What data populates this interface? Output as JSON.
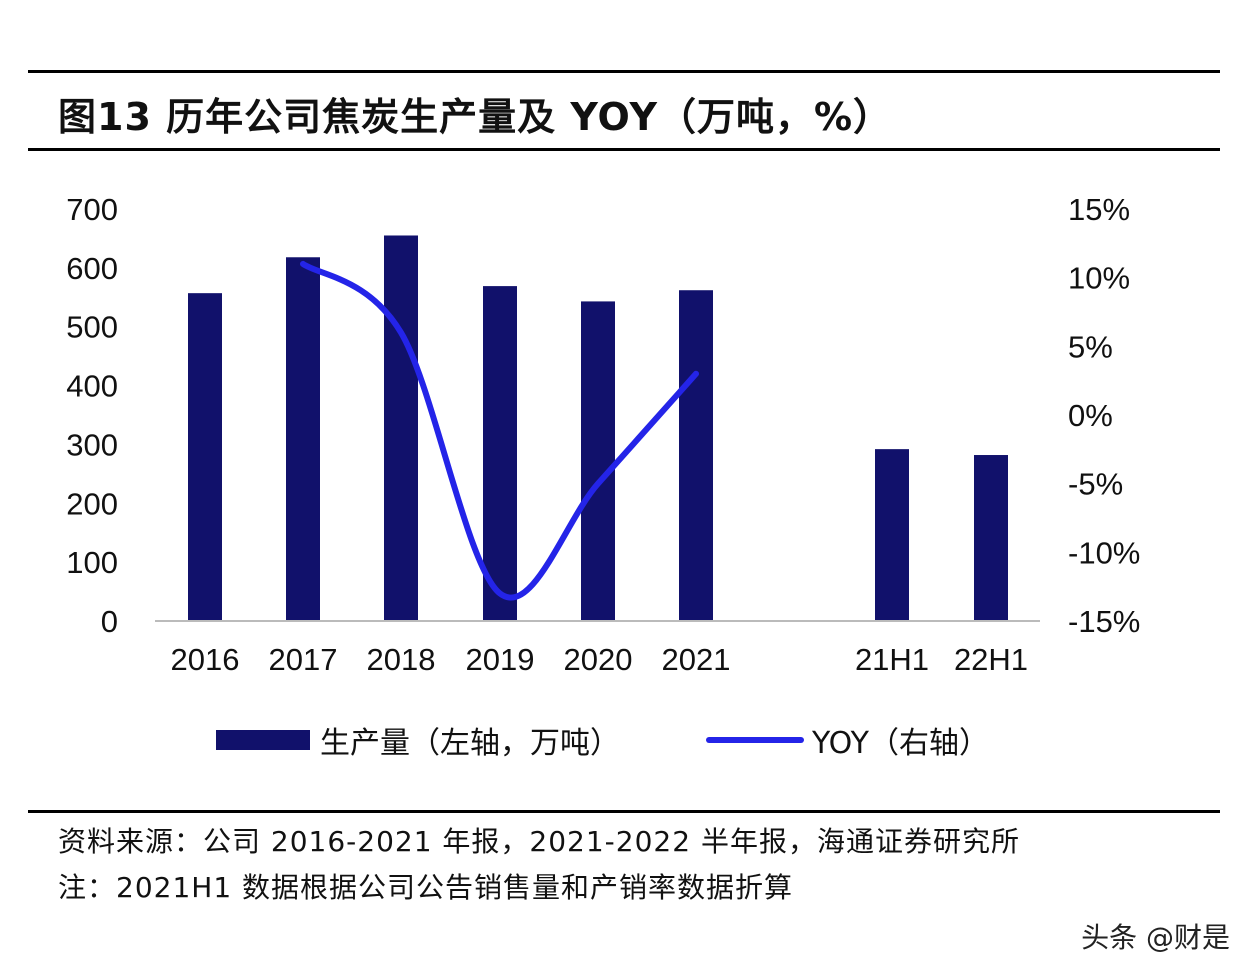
{
  "title": "图13 历年公司焦炭生产量及 YOY（万吨，%）",
  "chart_data": {
    "type": "bar",
    "categories": [
      "2016",
      "2017",
      "2018",
      "2019",
      "2020",
      "2021",
      "21H1",
      "22H1"
    ],
    "series": [
      {
        "name": "生产量（左轴，万吨）",
        "type": "bar",
        "axis": "left",
        "values": [
          557,
          618,
          655,
          569,
          543,
          562,
          292,
          282
        ]
      },
      {
        "name": "YOY（右轴）",
        "type": "line",
        "axis": "right",
        "values": [
          null,
          11,
          6,
          -13,
          -5,
          3,
          null,
          null
        ]
      }
    ],
    "y_left": {
      "min": 0,
      "max": 700,
      "ticks": [
        "0",
        "100",
        "200",
        "300",
        "400",
        "500",
        "600",
        "700"
      ]
    },
    "y_right": {
      "min": -15,
      "max": 15,
      "ticks": [
        "-15%",
        "-10%",
        "-5%",
        "0%",
        "5%",
        "10%",
        "15%"
      ]
    },
    "colors": {
      "bar": "#11116b",
      "line": "#2424e8"
    }
  },
  "legend": {
    "bar_label": "生产量（左轴，万吨）",
    "line_label": "YOY（右轴）"
  },
  "source": "资料来源：公司 2016-2021 年报，2021-2022 半年报，海通证券研究所",
  "note": "注：2021H1 数据根据公司公告销售量和产销率数据折算",
  "watermark": "头条 @财是"
}
